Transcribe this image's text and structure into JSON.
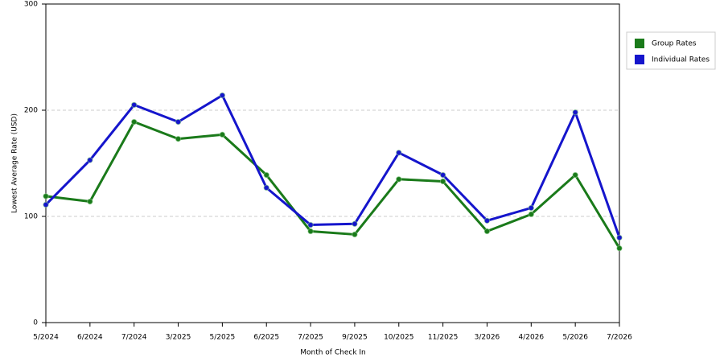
{
  "chart_data": {
    "type": "line",
    "x_label": "Month of Check In",
    "y_label": "Lowest Average Rate (USD)",
    "categories": [
      "5/2024",
      "6/2024",
      "7/2024",
      "3/2025",
      "5/2025",
      "6/2025",
      "7/2025",
      "9/2025",
      "10/2025",
      "11/2025",
      "3/2026",
      "4/2026",
      "5/2026",
      "7/2026"
    ],
    "series": [
      {
        "name": "Group Rates",
        "color": "#1a7a1a",
        "values": [
          119,
          114,
          189,
          173,
          177,
          139,
          86,
          83,
          135,
          133,
          86,
          102,
          139,
          70
        ]
      },
      {
        "name": "Individual Rates",
        "color": "#1515cc",
        "values": [
          111,
          153,
          205,
          189,
          214,
          127,
          92,
          93,
          160,
          139,
          96,
          108,
          198,
          80
        ]
      }
    ],
    "ylim": [
      0,
      300
    ],
    "yticks": [
      0,
      100,
      200,
      300
    ],
    "grid": true,
    "legend": "right"
  }
}
